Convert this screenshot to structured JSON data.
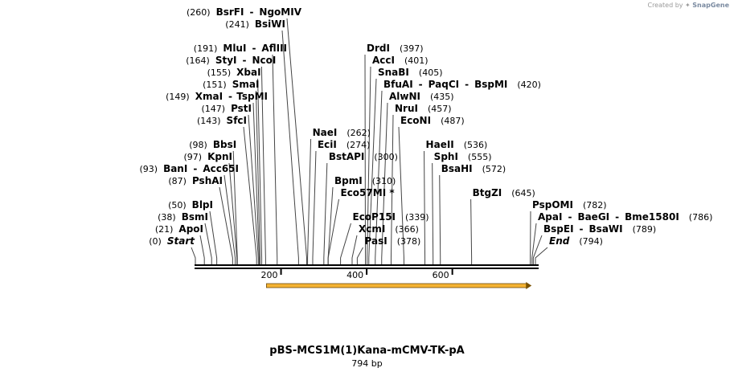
{
  "watermark": {
    "prefix": "Created by",
    "brand": "SnapGene"
  },
  "plasmid": {
    "name": "pBS-MCS1M(1)Kana-mCMV-TK-pA",
    "length_label": "794 bp",
    "length": 794
  },
  "ticks": [
    {
      "pos": 200,
      "label": "200"
    },
    {
      "pos": 400,
      "label": "400"
    },
    {
      "pos": 600,
      "label": "600"
    }
  ],
  "feature": {
    "start": 166,
    "end": 785,
    "color": "#f5b332",
    "direction": "forward"
  },
  "sites": [
    {
      "id": "start",
      "pos": 0,
      "parts": [
        {
          "t": "(0)",
          "k": "pos"
        },
        {
          "t": "Start",
          "k": "ital"
        }
      ],
      "side": "left",
      "row": 0
    },
    {
      "id": "apoi",
      "pos": 21,
      "parts": [
        {
          "t": "(21)",
          "k": "pos"
        },
        {
          "t": "ApoI",
          "k": "enz"
        }
      ],
      "side": "left",
      "row": 1
    },
    {
      "id": "bsmi",
      "pos": 38,
      "parts": [
        {
          "t": "(38)",
          "k": "pos"
        },
        {
          "t": "BsmI",
          "k": "enz"
        }
      ],
      "side": "left",
      "row": 2
    },
    {
      "id": "blpi",
      "pos": 50,
      "parts": [
        {
          "t": "(50)",
          "k": "pos"
        },
        {
          "t": "BlpI",
          "k": "enz"
        }
      ],
      "side": "left",
      "row": 3
    },
    {
      "id": "pshai",
      "pos": 87,
      "parts": [
        {
          "t": "(87)",
          "k": "pos"
        },
        {
          "t": "PshAI",
          "k": "enz"
        }
      ],
      "side": "left",
      "row": 5
    },
    {
      "id": "bani",
      "pos": 93,
      "parts": [
        {
          "t": "(93)",
          "k": "pos"
        },
        {
          "t": "BanI",
          "k": "enz"
        },
        {
          "t": "-",
          "k": "sep"
        },
        {
          "t": "Acc65I",
          "k": "enz"
        }
      ],
      "side": "left",
      "row": 6
    },
    {
      "id": "kpni",
      "pos": 97,
      "parts": [
        {
          "t": "(97)",
          "k": "pos"
        },
        {
          "t": "KpnI",
          "k": "enz"
        }
      ],
      "side": "left",
      "row": 7
    },
    {
      "id": "bbsi",
      "pos": 98,
      "parts": [
        {
          "t": "(98)",
          "k": "pos"
        },
        {
          "t": "BbsI",
          "k": "enz"
        }
      ],
      "side": "left",
      "row": 8
    },
    {
      "id": "sfci",
      "pos": 143,
      "parts": [
        {
          "t": "(143)",
          "k": "pos"
        },
        {
          "t": "SfcI",
          "k": "enz"
        }
      ],
      "side": "left",
      "row": 10
    },
    {
      "id": "psti",
      "pos": 147,
      "parts": [
        {
          "t": "(147)",
          "k": "pos"
        },
        {
          "t": "PstI",
          "k": "enz"
        }
      ],
      "side": "left",
      "row": 11
    },
    {
      "id": "xmai",
      "pos": 149,
      "parts": [
        {
          "t": "(149)",
          "k": "pos"
        },
        {
          "t": "XmaI",
          "k": "enz"
        },
        {
          "t": "-",
          "k": "sep"
        },
        {
          "t": "TspMI",
          "k": "enz"
        }
      ],
      "side": "left",
      "row": 12
    },
    {
      "id": "smai",
      "pos": 151,
      "parts": [
        {
          "t": "(151)",
          "k": "pos"
        },
        {
          "t": "SmaI",
          "k": "enz"
        }
      ],
      "side": "left",
      "row": 13
    },
    {
      "id": "xbai",
      "pos": 155,
      "parts": [
        {
          "t": "(155)",
          "k": "pos"
        },
        {
          "t": "XbaI",
          "k": "enz"
        }
      ],
      "side": "left",
      "row": 14
    },
    {
      "id": "styi",
      "pos": 164,
      "parts": [
        {
          "t": "(164)",
          "k": "pos"
        },
        {
          "t": "StyI",
          "k": "enz"
        },
        {
          "t": "-",
          "k": "sep"
        },
        {
          "t": "NcoI",
          "k": "enz"
        }
      ],
      "side": "left",
      "row": 15
    },
    {
      "id": "mlui",
      "pos": 191,
      "parts": [
        {
          "t": "(191)",
          "k": "pos"
        },
        {
          "t": "MluI",
          "k": "enz"
        },
        {
          "t": "-",
          "k": "sep"
        },
        {
          "t": "AflIII",
          "k": "enz"
        }
      ],
      "side": "left",
      "row": 16
    },
    {
      "id": "bsiwi",
      "pos": 241,
      "parts": [
        {
          "t": "(241)",
          "k": "pos"
        },
        {
          "t": "BsiWI",
          "k": "enz"
        }
      ],
      "side": "left",
      "row": 18
    },
    {
      "id": "bsrfi",
      "pos": 260,
      "parts": [
        {
          "t": "(260)",
          "k": "pos"
        },
        {
          "t": "BsrFI",
          "k": "enz"
        },
        {
          "t": "-",
          "k": "sep"
        },
        {
          "t": "NgoMIV",
          "k": "enz"
        }
      ],
      "side": "left",
      "row": 19
    },
    {
      "id": "naei",
      "pos": 262,
      "parts": [
        {
          "t": "NaeI",
          "k": "enz"
        },
        {
          "t": "(262)",
          "k": "pos"
        }
      ],
      "side": "right",
      "row": 9
    },
    {
      "id": "ecii",
      "pos": 274,
      "parts": [
        {
          "t": "EciI",
          "k": "enz"
        },
        {
          "t": "(274)",
          "k": "pos"
        }
      ],
      "side": "right",
      "row": 8
    },
    {
      "id": "bstapi",
      "pos": 300,
      "parts": [
        {
          "t": "BstAPI",
          "k": "enz"
        },
        {
          "t": "(300)",
          "k": "pos"
        }
      ],
      "side": "right",
      "row": 7
    },
    {
      "id": "bpmi",
      "pos": 310,
      "parts": [
        {
          "t": "BpmI",
          "k": "enz"
        },
        {
          "t": "(310)",
          "k": "pos"
        }
      ],
      "side": "right",
      "row": 5
    },
    {
      "id": "eco57mi",
      "pos": 310,
      "parts": [
        {
          "t": "Eco57MI *",
          "k": "enz"
        }
      ],
      "side": "right",
      "row": 4
    },
    {
      "id": "ecop15i",
      "pos": 339,
      "parts": [
        {
          "t": "EcoP15I",
          "k": "enz"
        },
        {
          "t": "(339)",
          "k": "pos"
        }
      ],
      "side": "right",
      "row": 2
    },
    {
      "id": "xcmi",
      "pos": 366,
      "parts": [
        {
          "t": "XcmI",
          "k": "enz"
        },
        {
          "t": "(366)",
          "k": "pos"
        }
      ],
      "side": "right",
      "row": 1
    },
    {
      "id": "pasi",
      "pos": 378,
      "parts": [
        {
          "t": "PasI",
          "k": "enz"
        },
        {
          "t": "(378)",
          "k": "pos"
        }
      ],
      "side": "right",
      "row": 0
    },
    {
      "id": "drdi",
      "pos": 397,
      "parts": [
        {
          "t": "DrdI",
          "k": "enz"
        },
        {
          "t": "(397)",
          "k": "pos"
        }
      ],
      "side": "right",
      "row": 16
    },
    {
      "id": "acci",
      "pos": 401,
      "parts": [
        {
          "t": "AccI",
          "k": "enz"
        },
        {
          "t": "(401)",
          "k": "pos"
        }
      ],
      "side": "right",
      "row": 15
    },
    {
      "id": "snabi",
      "pos": 405,
      "parts": [
        {
          "t": "SnaBI",
          "k": "enz"
        },
        {
          "t": "(405)",
          "k": "pos"
        }
      ],
      "side": "right",
      "row": 14
    },
    {
      "id": "bfuai",
      "pos": 420,
      "parts": [
        {
          "t": "BfuAI",
          "k": "enz"
        },
        {
          "t": "-",
          "k": "sep"
        },
        {
          "t": "PaqCI",
          "k": "enz"
        },
        {
          "t": "-",
          "k": "sep"
        },
        {
          "t": "BspMI",
          "k": "enz"
        },
        {
          "t": "(420)",
          "k": "pos"
        }
      ],
      "side": "right",
      "row": 13
    },
    {
      "id": "alwni",
      "pos": 435,
      "parts": [
        {
          "t": "AlwNI",
          "k": "enz"
        },
        {
          "t": "(435)",
          "k": "pos"
        }
      ],
      "side": "right",
      "row": 12
    },
    {
      "id": "nrui",
      "pos": 457,
      "parts": [
        {
          "t": "NruI",
          "k": "enz"
        },
        {
          "t": "(457)",
          "k": "pos"
        }
      ],
      "side": "right",
      "row": 11
    },
    {
      "id": "econi",
      "pos": 487,
      "parts": [
        {
          "t": "EcoNI",
          "k": "enz"
        },
        {
          "t": "(487)",
          "k": "pos"
        }
      ],
      "side": "right",
      "row": 10
    },
    {
      "id": "haeii",
      "pos": 536,
      "parts": [
        {
          "t": "HaeII",
          "k": "enz"
        },
        {
          "t": "(536)",
          "k": "pos"
        }
      ],
      "side": "right",
      "row": 8
    },
    {
      "id": "sphi",
      "pos": 555,
      "parts": [
        {
          "t": "SphI",
          "k": "enz"
        },
        {
          "t": "(555)",
          "k": "pos"
        }
      ],
      "side": "right",
      "row": 7
    },
    {
      "id": "bsahi",
      "pos": 572,
      "parts": [
        {
          "t": "BsaHI",
          "k": "enz"
        },
        {
          "t": "(572)",
          "k": "pos"
        }
      ],
      "side": "right",
      "row": 6
    },
    {
      "id": "btgzi",
      "pos": 645,
      "parts": [
        {
          "t": "BtgZI",
          "k": "enz"
        },
        {
          "t": "(645)",
          "k": "pos"
        }
      ],
      "side": "right",
      "row": 4
    },
    {
      "id": "pspomi",
      "pos": 782,
      "parts": [
        {
          "t": "PspOMI",
          "k": "enz"
        },
        {
          "t": "(782)",
          "k": "pos"
        }
      ],
      "side": "right",
      "row": 3
    },
    {
      "id": "apai",
      "pos": 786,
      "parts": [
        {
          "t": "ApaI",
          "k": "enz"
        },
        {
          "t": "-",
          "k": "sep"
        },
        {
          "t": "BaeGI",
          "k": "enz"
        },
        {
          "t": "-",
          "k": "sep"
        },
        {
          "t": "Bme1580I",
          "k": "enz"
        },
        {
          "t": "(786)",
          "k": "pos"
        }
      ],
      "side": "right",
      "row": 2
    },
    {
      "id": "bspei",
      "pos": 789,
      "parts": [
        {
          "t": "BspEI",
          "k": "enz"
        },
        {
          "t": "-",
          "k": "sep"
        },
        {
          "t": "BsaWI",
          "k": "enz"
        },
        {
          "t": "(789)",
          "k": "pos"
        }
      ],
      "side": "right",
      "row": 1
    },
    {
      "id": "end",
      "pos": 794,
      "parts": [
        {
          "t": "End",
          "k": "ital"
        },
        {
          "t": "(794)",
          "k": "pos"
        }
      ],
      "side": "right",
      "row": 0
    }
  ]
}
